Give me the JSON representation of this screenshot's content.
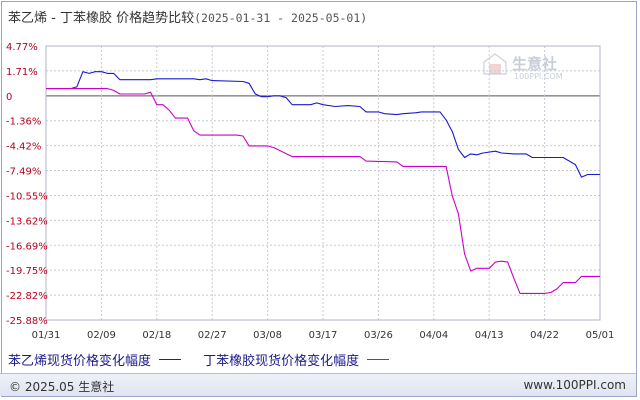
{
  "title": {
    "main": "苯乙烯 - 丁苯橡胶 价格趋势比较",
    "range": "(2025-01-31 - 2025-05-01)"
  },
  "watermark": {
    "brand": "生意社",
    "url": "100PPI.COM"
  },
  "footer": {
    "copyright": "© 2025.05 生意社",
    "url": "www.100PPI.com"
  },
  "colors": {
    "series1": "#1a1acc",
    "series2": "#cc00cc",
    "tick": "#b8001f",
    "grid": "#c7cbd6"
  },
  "chart_data": {
    "type": "line",
    "title": "苯乙烯 - 丁苯橡胶 价格趋势比较",
    "xlabel": "",
    "ylabel": "",
    "x_range": [
      "2025-01-31",
      "2025-05-01"
    ],
    "ylim": [
      -25.88,
      4.77
    ],
    "grid": true,
    "legend_position": "bottom",
    "y_ticks": [
      "4.77%",
      "1.71%",
      "0",
      "-1.36%",
      "-4.42%",
      "-7.49%",
      "-10.55%",
      "-13.62%",
      "-16.69%",
      "-19.75%",
      "-22.82%",
      "-25.88%"
    ],
    "x_ticks": [
      {
        "date": "2025-01-31",
        "label": "01/31"
      },
      {
        "date": "2025-02-09",
        "label": "02/09"
      },
      {
        "date": "2025-02-18",
        "label": "02/18"
      },
      {
        "date": "2025-02-27",
        "label": "02/27"
      },
      {
        "date": "2025-03-08",
        "label": "03/08"
      },
      {
        "date": "2025-03-17",
        "label": "03/17"
      },
      {
        "date": "2025-03-26",
        "label": "03/26"
      },
      {
        "date": "2025-04-04",
        "label": "04/04"
      },
      {
        "date": "2025-04-13",
        "label": "04/13"
      },
      {
        "date": "2025-04-22",
        "label": "04/22"
      },
      {
        "date": "2025-05-01",
        "label": "05/01"
      }
    ],
    "series": [
      {
        "name": "苯乙烯现货价格变化幅度",
        "color": "#1a1acc",
        "points": [
          [
            "2025-01-31",
            0
          ],
          [
            "2025-02-04",
            0
          ],
          [
            "2025-02-05",
            0.2
          ],
          [
            "2025-02-06",
            1.9
          ],
          [
            "2025-02-07",
            1.7
          ],
          [
            "2025-02-08",
            1.9
          ],
          [
            "2025-02-09",
            1.9
          ],
          [
            "2025-02-10",
            1.7
          ],
          [
            "2025-02-11",
            1.7
          ],
          [
            "2025-02-12",
            1.0
          ],
          [
            "2025-02-17",
            1.0
          ],
          [
            "2025-02-18",
            1.1
          ],
          [
            "2025-02-24",
            1.1
          ],
          [
            "2025-02-25",
            1.0
          ],
          [
            "2025-02-26",
            1.1
          ],
          [
            "2025-02-27",
            0.9
          ],
          [
            "2025-03-04",
            0.8
          ],
          [
            "2025-03-05",
            0.6
          ],
          [
            "2025-03-06",
            -0.6
          ],
          [
            "2025-03-07",
            -0.9
          ],
          [
            "2025-03-08",
            -0.9
          ],
          [
            "2025-03-09",
            -0.8
          ],
          [
            "2025-03-10",
            -0.8
          ],
          [
            "2025-03-11",
            -1.0
          ],
          [
            "2025-03-12",
            -1.8
          ],
          [
            "2025-03-14",
            -1.8
          ],
          [
            "2025-03-15",
            -1.8
          ],
          [
            "2025-03-16",
            -1.6
          ],
          [
            "2025-03-17",
            -1.8
          ],
          [
            "2025-03-19",
            -2.0
          ],
          [
            "2025-03-21",
            -1.9
          ],
          [
            "2025-03-23",
            -2.0
          ],
          [
            "2025-03-24",
            -2.6
          ],
          [
            "2025-03-26",
            -2.6
          ],
          [
            "2025-03-27",
            -2.8
          ],
          [
            "2025-03-29",
            -2.9
          ],
          [
            "2025-03-30",
            -2.8
          ],
          [
            "2025-04-01",
            -2.7
          ],
          [
            "2025-04-02",
            -2.6
          ],
          [
            "2025-04-05",
            -2.6
          ],
          [
            "2025-04-06",
            -3.5
          ],
          [
            "2025-04-07",
            -4.8
          ],
          [
            "2025-04-08",
            -6.8
          ],
          [
            "2025-04-09",
            -7.7
          ],
          [
            "2025-04-10",
            -7.3
          ],
          [
            "2025-04-11",
            -7.4
          ],
          [
            "2025-04-12",
            -7.2
          ],
          [
            "2025-04-14",
            -7.0
          ],
          [
            "2025-04-15",
            -7.2
          ],
          [
            "2025-04-17",
            -7.3
          ],
          [
            "2025-04-19",
            -7.3
          ],
          [
            "2025-04-20",
            -7.7
          ],
          [
            "2025-04-25",
            -7.7
          ],
          [
            "2025-04-27",
            -8.5
          ],
          [
            "2025-04-28",
            -9.9
          ],
          [
            "2025-04-29",
            -9.6
          ],
          [
            "2025-05-01",
            -9.6
          ]
        ]
      },
      {
        "name": "丁苯橡胶现货价格变化幅度",
        "color": "#cc00cc",
        "points": [
          [
            "2025-01-31",
            0
          ],
          [
            "2025-02-10",
            0
          ],
          [
            "2025-02-11",
            -0.2
          ],
          [
            "2025-02-12",
            -0.6
          ],
          [
            "2025-02-16",
            -0.6
          ],
          [
            "2025-02-17",
            -0.4
          ],
          [
            "2025-02-18",
            -1.8
          ],
          [
            "2025-02-19",
            -1.8
          ],
          [
            "2025-02-20",
            -2.4
          ],
          [
            "2025-02-21",
            -3.3
          ],
          [
            "2025-02-23",
            -3.3
          ],
          [
            "2025-02-24",
            -4.7
          ],
          [
            "2025-02-25",
            -5.2
          ],
          [
            "2025-03-03",
            -5.2
          ],
          [
            "2025-03-04",
            -5.3
          ],
          [
            "2025-03-05",
            -6.4
          ],
          [
            "2025-03-08",
            -6.4
          ],
          [
            "2025-03-09",
            -6.6
          ],
          [
            "2025-03-12",
            -7.6
          ],
          [
            "2025-03-17",
            -7.6
          ],
          [
            "2025-03-18",
            -7.6
          ],
          [
            "2025-03-23",
            -7.6
          ],
          [
            "2025-03-24",
            -8.1
          ],
          [
            "2025-03-29",
            -8.2
          ],
          [
            "2025-03-30",
            -8.7
          ],
          [
            "2025-04-06",
            -8.7
          ],
          [
            "2025-04-07",
            -12.0
          ],
          [
            "2025-04-08",
            -14.0
          ],
          [
            "2025-04-09",
            -18.5
          ],
          [
            "2025-04-10",
            -20.4
          ],
          [
            "2025-04-11",
            -20.1
          ],
          [
            "2025-04-13",
            -20.1
          ],
          [
            "2025-04-14",
            -19.4
          ],
          [
            "2025-04-15",
            -19.3
          ],
          [
            "2025-04-16",
            -19.4
          ],
          [
            "2025-04-17",
            -21.2
          ],
          [
            "2025-04-18",
            -22.9
          ],
          [
            "2025-04-22",
            -22.9
          ],
          [
            "2025-04-23",
            -22.8
          ],
          [
            "2025-04-24",
            -22.4
          ],
          [
            "2025-04-25",
            -21.7
          ],
          [
            "2025-04-27",
            -21.7
          ],
          [
            "2025-04-28",
            -21.0
          ],
          [
            "2025-05-01",
            -21.0
          ]
        ]
      }
    ]
  }
}
